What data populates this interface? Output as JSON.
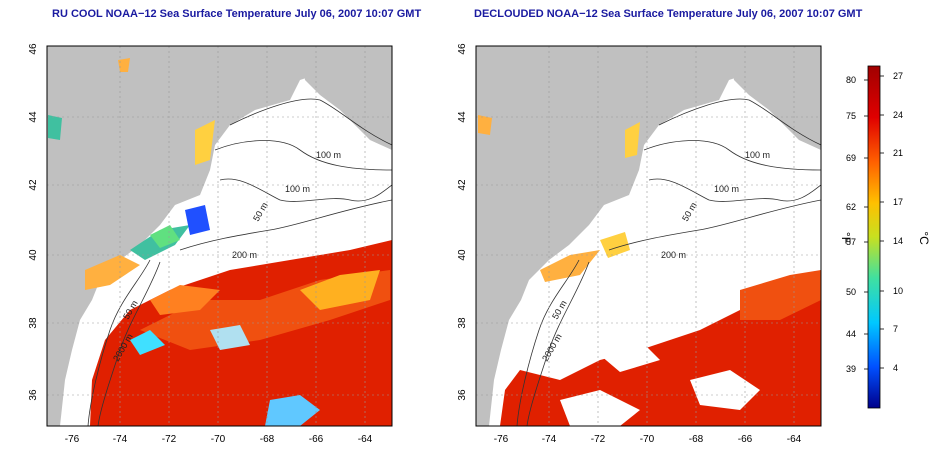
{
  "panels": [
    {
      "title": "RU COOL NOAA−12 Sea Surface Temperature July 06, 2007 10:07 GMT",
      "y_ticks": [
        "36",
        "38",
        "40",
        "42",
        "44",
        "46"
      ],
      "x_ticks": [
        "-76",
        "-74",
        "-72",
        "-70",
        "-68",
        "-66",
        "-64"
      ],
      "contour_labels": [
        "100 m",
        "100 m",
        "50 m",
        "200 m",
        "50 m",
        "2000 m"
      ]
    },
    {
      "title": "DECLOUDED NOAA−12 Sea Surface Temperature July 06, 2007 10:07 GMT",
      "y_ticks": [
        "36",
        "38",
        "40",
        "42",
        "44",
        "46"
      ],
      "x_ticks": [
        "-76",
        "-74",
        "-72",
        "-70",
        "-68",
        "-66",
        "-64"
      ],
      "contour_labels": [
        "100 m",
        "100 m",
        "50 m",
        "200 m",
        "50 m",
        "2000 m"
      ]
    }
  ],
  "colorbar": {
    "fahrenheit_label": "°F",
    "celsius_label": "°C",
    "fahrenheit_ticks": [
      "80",
      "75",
      "69",
      "62",
      "57",
      "50",
      "44",
      "39"
    ],
    "celsius_ticks": [
      "27",
      "24",
      "21",
      "17",
      "14",
      "10",
      "7",
      "4"
    ],
    "colors": [
      "#00008b",
      "#0050ff",
      "#00c8ff",
      "#40e0a0",
      "#c8e020",
      "#ffc000",
      "#ff6000",
      "#e00000",
      "#a00000"
    ]
  }
}
